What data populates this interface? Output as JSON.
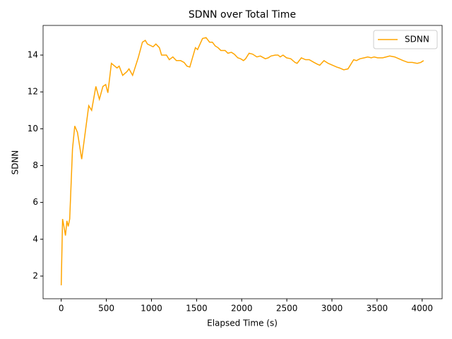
{
  "chart_data": {
    "type": "line",
    "title": "SDNN over Total Time",
    "x_label": "Elapsed Time (s)",
    "y_label": "SDNN",
    "x": [
      0,
      15,
      30,
      47,
      63,
      78,
      94,
      125,
      150,
      180,
      227,
      266,
      305,
      337,
      384,
      423,
      462,
      493,
      517,
      556,
      618,
      642,
      681,
      728,
      751,
      791,
      853,
      900,
      932,
      955,
      1018,
      1049,
      1088,
      1112,
      1166,
      1198,
      1237,
      1276,
      1323,
      1362,
      1393,
      1425,
      1487,
      1511,
      1566,
      1605,
      1644,
      1675,
      1706,
      1738,
      1769,
      1816,
      1847,
      1886,
      1918,
      1957,
      1988,
      2020,
      2043,
      2082,
      2121,
      2168,
      2207,
      2262,
      2294,
      2325,
      2372,
      2403,
      2427,
      2458,
      2497,
      2544,
      2591,
      2614,
      2661,
      2708,
      2748,
      2802,
      2841,
      2865,
      2912,
      2959,
      3006,
      3053,
      3084,
      3131,
      3178,
      3241,
      3272,
      3311,
      3358,
      3397,
      3436,
      3468,
      3507,
      3562,
      3601,
      3640,
      3695,
      3742,
      3789,
      3844,
      3890,
      3945,
      3984,
      4016
    ],
    "series": [
      {
        "name": "SDNN",
        "color": "#ffa500",
        "values": [
          1.5,
          5.1,
          4.7,
          4.2,
          5.0,
          4.7,
          5.1,
          8.9,
          10.15,
          9.8,
          8.35,
          9.8,
          11.25,
          11.0,
          12.3,
          11.6,
          12.3,
          12.4,
          11.95,
          13.55,
          13.3,
          13.4,
          12.9,
          13.1,
          13.25,
          12.9,
          13.85,
          14.7,
          14.8,
          14.6,
          14.45,
          14.6,
          14.4,
          14.0,
          14.0,
          13.75,
          13.9,
          13.7,
          13.7,
          13.6,
          13.4,
          13.35,
          14.4,
          14.3,
          14.9,
          14.95,
          14.7,
          14.7,
          14.5,
          14.4,
          14.25,
          14.25,
          14.1,
          14.15,
          14.05,
          13.85,
          13.8,
          13.7,
          13.8,
          14.1,
          14.05,
          13.9,
          13.95,
          13.8,
          13.85,
          13.95,
          14.0,
          14.0,
          13.9,
          14.0,
          13.85,
          13.8,
          13.6,
          13.55,
          13.85,
          13.75,
          13.75,
          13.6,
          13.5,
          13.45,
          13.7,
          13.55,
          13.45,
          13.35,
          13.3,
          13.2,
          13.25,
          13.75,
          13.7,
          13.8,
          13.85,
          13.9,
          13.85,
          13.9,
          13.85,
          13.85,
          13.9,
          13.95,
          13.9,
          13.8,
          13.7,
          13.6,
          13.6,
          13.55,
          13.6,
          13.7
        ]
      }
    ],
    "xlim": [
      -201,
      4221
    ],
    "ylim": [
      0.77,
      15.61
    ],
    "xticks": [
      0,
      500,
      1000,
      1500,
      2000,
      2500,
      3000,
      3500,
      4000
    ],
    "yticks": [
      2,
      4,
      6,
      8,
      10,
      12,
      14
    ],
    "legend": "upper right",
    "grid": false
  }
}
